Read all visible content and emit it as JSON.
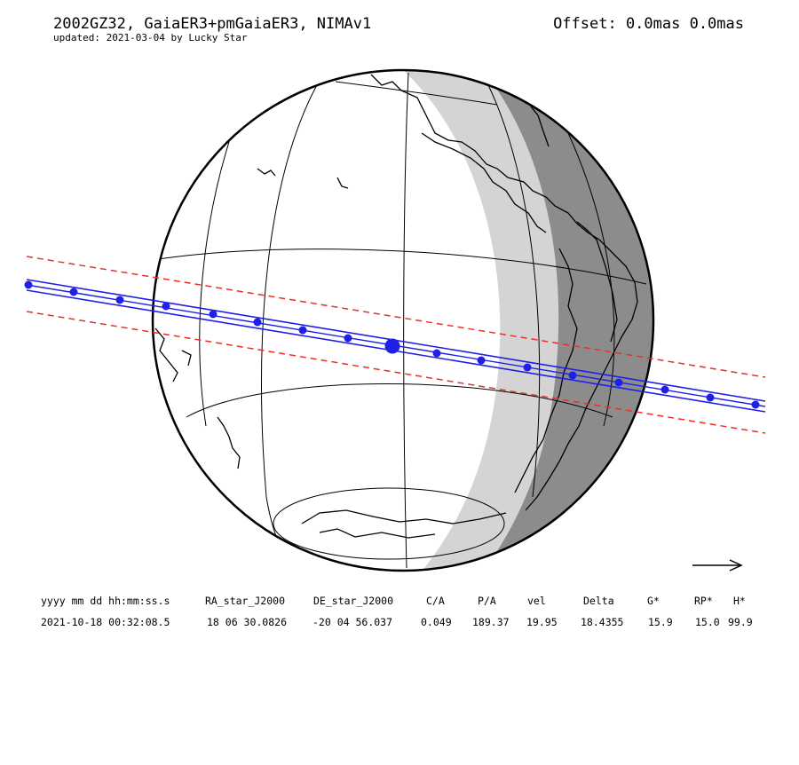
{
  "header": {
    "title": "2002GZ32, GaiaER3+pmGaiaER3, NIMAv1",
    "subtitle": "updated: 2021-03-04 by Lucky Star",
    "offset": "Offset: 0.0mas 0.0mas"
  },
  "map": {
    "colors": {
      "night": "#8c8c8c",
      "twilight": "#d4d4d4",
      "path": "#1f1fe8",
      "uncertainty": "#e8302a",
      "outline": "#000000"
    },
    "direction_arrow": "arrow-right-icon"
  },
  "table": {
    "headers": [
      "yyyy mm dd hh:mm:ss.s",
      "RA_star_J2000",
      "DE_star_J2000",
      "C/A",
      "P/A",
      "vel",
      "Delta",
      "G*",
      "RP*",
      "H*"
    ],
    "values": [
      "2021-10-18 00:32:08.5",
      "18 06 30.0826",
      "-20 04 56.037",
      "0.049",
      "189.37",
      "19.95",
      "18.4355",
      "15.9",
      "15.0",
      "99.9"
    ]
  }
}
